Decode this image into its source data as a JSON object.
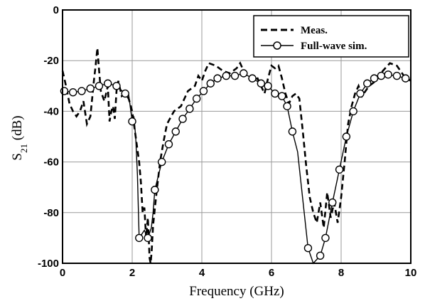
{
  "chart_data": {
    "type": "line",
    "title": "",
    "xlabel": "Frequency (GHz)",
    "ylabel_main": "S",
    "ylabel_sub": "21",
    "ylabel_unit": " (dB)",
    "xlim": [
      0,
      10
    ],
    "ylim": [
      -100,
      0
    ],
    "xticks": [
      0,
      2,
      4,
      6,
      8,
      10
    ],
    "yticks": [
      0,
      -20,
      -40,
      -60,
      -80,
      -100
    ],
    "grid": true,
    "legend_position": "top-right",
    "series": [
      {
        "name": "Meas.",
        "style": "dashed",
        "points": [
          [
            0.0,
            -24
          ],
          [
            0.1,
            -30
          ],
          [
            0.2,
            -37
          ],
          [
            0.3,
            -40
          ],
          [
            0.4,
            -42
          ],
          [
            0.5,
            -40
          ],
          [
            0.6,
            -36
          ],
          [
            0.7,
            -45
          ],
          [
            0.8,
            -42
          ],
          [
            0.9,
            -28
          ],
          [
            0.95,
            -22
          ],
          [
            1.0,
            -15
          ],
          [
            1.05,
            -24
          ],
          [
            1.1,
            -32
          ],
          [
            1.2,
            -36
          ],
          [
            1.3,
            -30
          ],
          [
            1.35,
            -44
          ],
          [
            1.4,
            -40
          ],
          [
            1.45,
            -38
          ],
          [
            1.5,
            -43
          ],
          [
            1.55,
            -32
          ],
          [
            1.6,
            -28
          ],
          [
            1.7,
            -34
          ],
          [
            1.8,
            -33
          ],
          [
            1.9,
            -35
          ],
          [
            2.0,
            -40
          ],
          [
            2.1,
            -50
          ],
          [
            2.2,
            -60
          ],
          [
            2.25,
            -68
          ],
          [
            2.3,
            -80
          ],
          [
            2.35,
            -78
          ],
          [
            2.4,
            -90
          ],
          [
            2.45,
            -82
          ],
          [
            2.5,
            -98
          ],
          [
            2.53,
            -100
          ],
          [
            2.56,
            -95
          ],
          [
            2.6,
            -85
          ],
          [
            2.7,
            -72
          ],
          [
            2.8,
            -60
          ],
          [
            2.9,
            -52
          ],
          [
            3.0,
            -45
          ],
          [
            3.2,
            -40
          ],
          [
            3.4,
            -38
          ],
          [
            3.6,
            -32
          ],
          [
            3.8,
            -30
          ],
          [
            3.9,
            -26
          ],
          [
            4.0,
            -28
          ],
          [
            4.1,
            -24
          ],
          [
            4.2,
            -21
          ],
          [
            4.4,
            -22
          ],
          [
            4.6,
            -24
          ],
          [
            4.8,
            -25
          ],
          [
            5.0,
            -23
          ],
          [
            5.1,
            -21
          ],
          [
            5.2,
            -24
          ],
          [
            5.4,
            -28
          ],
          [
            5.6,
            -27
          ],
          [
            5.7,
            -30
          ],
          [
            5.8,
            -33
          ],
          [
            5.9,
            -27
          ],
          [
            6.0,
            -22
          ],
          [
            6.1,
            -23
          ],
          [
            6.2,
            -22
          ],
          [
            6.3,
            -27
          ],
          [
            6.4,
            -33
          ],
          [
            6.5,
            -37
          ],
          [
            6.6,
            -34
          ],
          [
            6.7,
            -33
          ],
          [
            6.8,
            -35
          ],
          [
            6.9,
            -48
          ],
          [
            7.0,
            -62
          ],
          [
            7.1,
            -74
          ],
          [
            7.2,
            -80
          ],
          [
            7.3,
            -84
          ],
          [
            7.4,
            -76
          ],
          [
            7.5,
            -86
          ],
          [
            7.6,
            -72
          ],
          [
            7.7,
            -82
          ],
          [
            7.8,
            -76
          ],
          [
            7.9,
            -84
          ],
          [
            8.0,
            -74
          ],
          [
            8.1,
            -60
          ],
          [
            8.2,
            -45
          ],
          [
            8.3,
            -38
          ],
          [
            8.4,
            -33
          ],
          [
            8.5,
            -30
          ],
          [
            8.6,
            -34
          ],
          [
            8.8,
            -30
          ],
          [
            9.0,
            -28
          ],
          [
            9.2,
            -24
          ],
          [
            9.4,
            -21
          ],
          [
            9.6,
            -22
          ],
          [
            9.8,
            -26
          ],
          [
            10.0,
            -28
          ]
        ]
      },
      {
        "name": "Full-wave sim.",
        "style": "solid-circle",
        "points": [
          [
            0.0,
            -32
          ],
          [
            0.05,
            -32
          ],
          [
            0.3,
            -32.5
          ],
          [
            0.55,
            -32
          ],
          [
            0.8,
            -31
          ],
          [
            1.05,
            -30
          ],
          [
            1.3,
            -29
          ],
          [
            1.55,
            -30
          ],
          [
            1.8,
            -33
          ],
          [
            1.9,
            -33.5
          ],
          [
            2.0,
            -44
          ],
          [
            2.05,
            -42
          ],
          [
            2.1,
            -50
          ],
          [
            2.15,
            -65
          ],
          [
            2.2,
            -90
          ],
          [
            2.35,
            -87
          ],
          [
            2.45,
            -90
          ],
          [
            2.55,
            -86
          ],
          [
            2.6,
            -80
          ],
          [
            2.65,
            -71
          ],
          [
            2.85,
            -60
          ],
          [
            3.05,
            -53
          ],
          [
            3.25,
            -48
          ],
          [
            3.45,
            -43
          ],
          [
            3.65,
            -39
          ],
          [
            3.85,
            -35
          ],
          [
            4.05,
            -32
          ],
          [
            4.25,
            -29
          ],
          [
            4.45,
            -27
          ],
          [
            4.7,
            -26
          ],
          [
            4.95,
            -26
          ],
          [
            5.2,
            -25
          ],
          [
            5.45,
            -27
          ],
          [
            5.7,
            -29
          ],
          [
            5.9,
            -30
          ],
          [
            6.1,
            -33
          ],
          [
            6.3,
            -34
          ],
          [
            6.45,
            -38
          ],
          [
            6.6,
            -48
          ],
          [
            6.75,
            -56
          ],
          [
            6.9,
            -75
          ],
          [
            7.05,
            -94
          ],
          [
            7.2,
            -100
          ],
          [
            7.4,
            -97
          ],
          [
            7.55,
            -90
          ],
          [
            7.75,
            -76
          ],
          [
            7.95,
            -63
          ],
          [
            8.15,
            -50
          ],
          [
            8.35,
            -40
          ],
          [
            8.55,
            -33
          ],
          [
            8.75,
            -29
          ],
          [
            8.95,
            -27
          ],
          [
            9.15,
            -26
          ],
          [
            9.35,
            -25.5
          ],
          [
            9.6,
            -26
          ],
          [
            9.85,
            -27
          ],
          [
            10.0,
            -28
          ]
        ],
        "marker_x": [
          0.05,
          0.3,
          0.55,
          0.8,
          1.05,
          1.3,
          1.55,
          1.8,
          2.0,
          2.2,
          2.45,
          2.65,
          2.85,
          3.05,
          3.25,
          3.45,
          3.65,
          3.85,
          4.05,
          4.25,
          4.45,
          4.7,
          4.95,
          5.2,
          5.45,
          5.7,
          5.9,
          6.1,
          6.3,
          6.45,
          6.6,
          7.05,
          7.4,
          7.55,
          7.75,
          7.95,
          8.15,
          8.35,
          8.55,
          8.75,
          8.95,
          9.15,
          9.35,
          9.6,
          9.85
        ]
      }
    ]
  }
}
